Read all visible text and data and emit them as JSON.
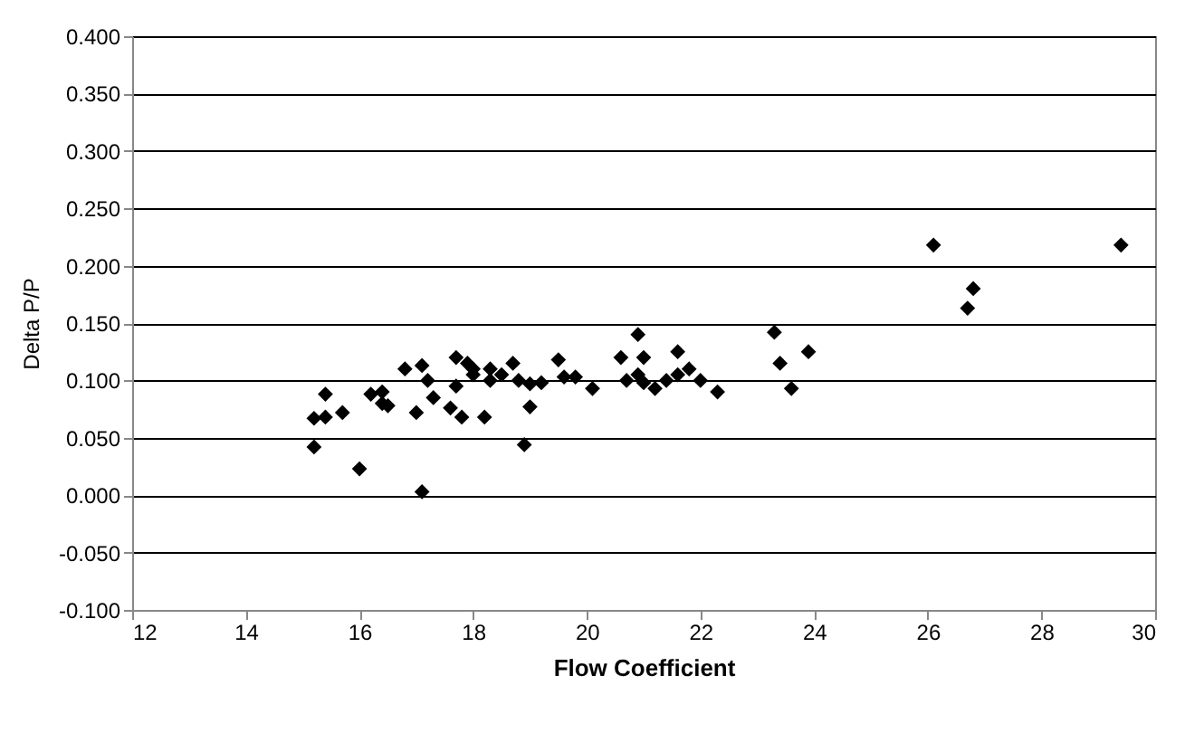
{
  "chart_data": {
    "type": "scatter",
    "xlabel": "Flow Coefficient",
    "ylabel": "Delta P/P",
    "x": [
      15.2,
      15.2,
      15.4,
      15.4,
      15.7,
      16.0,
      16.2,
      16.4,
      16.4,
      16.5,
      16.8,
      17.0,
      17.1,
      17.1,
      17.2,
      17.3,
      17.6,
      17.7,
      17.7,
      17.8,
      17.9,
      18.0,
      18.0,
      18.2,
      18.3,
      18.3,
      18.5,
      18.7,
      18.8,
      18.9,
      19.0,
      19.0,
      19.2,
      19.5,
      19.6,
      19.8,
      20.1,
      20.6,
      20.7,
      20.9,
      20.9,
      21.0,
      21.0,
      21.2,
      21.4,
      21.6,
      21.6,
      21.8,
      22.0,
      22.3,
      23.3,
      23.4,
      23.6,
      23.9,
      26.1,
      26.7,
      26.8,
      29.4
    ],
    "series": [
      {
        "color": "#000000",
        "values": [
          0.067,
          0.042,
          0.068,
          0.088,
          0.072,
          0.023,
          0.088,
          0.09,
          0.08,
          0.078,
          0.11,
          0.072,
          0.113,
          0.003,
          0.1,
          0.085,
          0.076,
          0.095,
          0.12,
          0.068,
          0.115,
          0.11,
          0.105,
          0.068,
          0.11,
          0.1,
          0.105,
          0.115,
          0.1,
          0.044,
          0.077,
          0.097,
          0.098,
          0.118,
          0.103,
          0.103,
          0.093,
          0.12,
          0.1,
          0.105,
          0.14,
          0.12,
          0.098,
          0.093,
          0.1,
          0.125,
          0.105,
          0.11,
          0.1,
          0.09,
          0.142,
          0.115,
          0.093,
          0.125,
          0.218,
          0.163,
          0.18,
          0.218
        ]
      }
    ],
    "xlim": [
      12,
      30
    ],
    "xticks": [
      12,
      14,
      16,
      18,
      20,
      22,
      24,
      26,
      28,
      30
    ],
    "ylim": [
      -0.1,
      0.4
    ],
    "yticks": [
      {
        "value": -0.1,
        "label": "-0.100"
      },
      {
        "value": -0.05,
        "label": "-0.050"
      },
      {
        "value": 0,
        "label": "0.000"
      },
      {
        "value": 0.05,
        "label": "0.050"
      },
      {
        "value": 0.1,
        "label": "0.100"
      },
      {
        "value": 0.15,
        "label": "0.150"
      },
      {
        "value": 0.2,
        "label": "0.200"
      },
      {
        "value": 0.25,
        "label": "0.250"
      },
      {
        "value": 0.3,
        "label": "0.300"
      },
      {
        "value": 0.35,
        "label": "0.350"
      },
      {
        "value": 0.4,
        "label": "0.400"
      }
    ],
    "grid": "y",
    "marker": "diamond"
  }
}
